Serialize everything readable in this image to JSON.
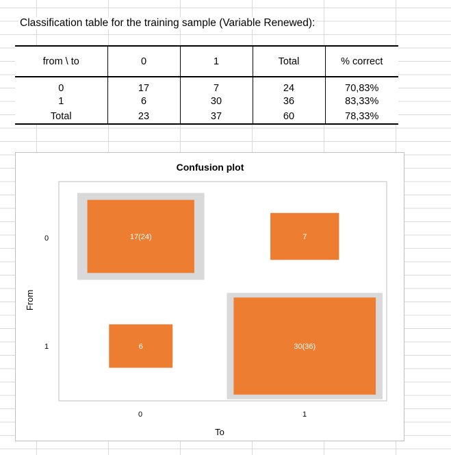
{
  "caption": "Classification table for the training sample (Variable Renewed):",
  "table": {
    "headers": [
      "from \\ to",
      "0",
      "1",
      "Total",
      "% correct"
    ],
    "rows": [
      [
        "0",
        "17",
        "7",
        "24",
        "70,83%"
      ],
      [
        "1",
        "6",
        "30",
        "36",
        "83,33%"
      ],
      [
        "Total",
        "23",
        "37",
        "60",
        "78,33%"
      ]
    ]
  },
  "chart_data": {
    "type": "heatmap",
    "title": "Confusion plot",
    "xlabel": "To",
    "ylabel": "From",
    "x_categories": [
      "0",
      "1"
    ],
    "y_categories": [
      "0",
      "1"
    ],
    "cells": [
      {
        "from": "0",
        "to": "0",
        "value": 17,
        "row_total": 24,
        "label": "17(24)"
      },
      {
        "from": "0",
        "to": "1",
        "value": 7,
        "label": "7"
      },
      {
        "from": "1",
        "to": "0",
        "value": 6,
        "label": "6"
      },
      {
        "from": "1",
        "to": "1",
        "value": 30,
        "row_total": 36,
        "label": "30(36)"
      }
    ],
    "colors": {
      "cell": "#ed7d31",
      "row_total_box": "#d9d9d9",
      "cell_text": "#ffffff"
    }
  }
}
